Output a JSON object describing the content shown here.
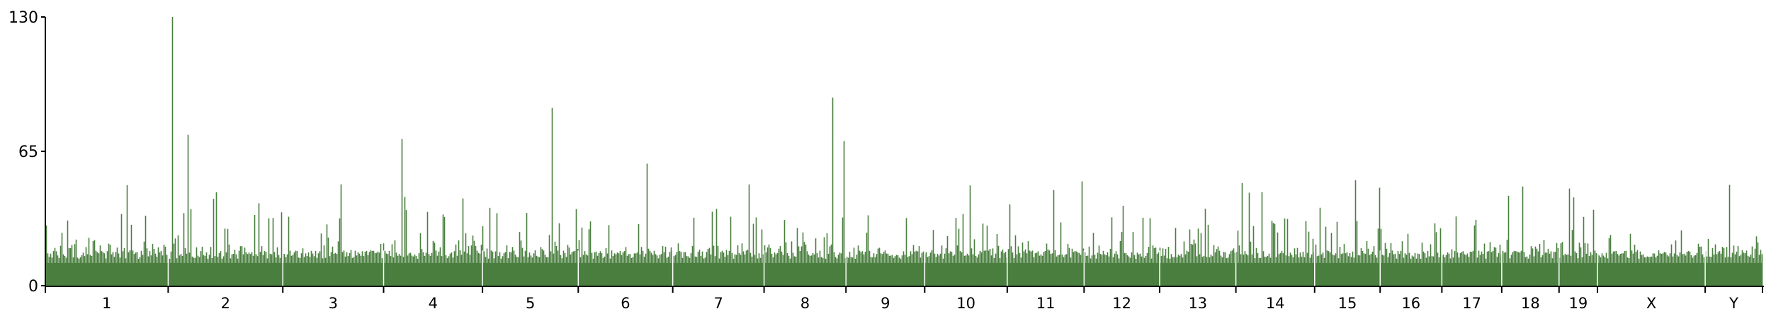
{
  "chart_data": {
    "type": "bar",
    "title": "",
    "xlabel": "",
    "ylabel": "",
    "ylim": [
      0,
      130
    ],
    "y_ticks": [
      0,
      65,
      130
    ],
    "y_tick_labels": [
      "0",
      "65",
      "130"
    ],
    "grid": false,
    "legend": "none",
    "bar_color": "#4a7f3f",
    "gap_color": "#ffffff",
    "axis_color": "#000000",
    "baseline_value": 15,
    "categories": [
      "1",
      "2",
      "3",
      "4",
      "5",
      "6",
      "7",
      "8",
      "9",
      "10",
      "11",
      "12",
      "13",
      "14",
      "15",
      "16",
      "17",
      "18",
      "19",
      "X",
      "Y"
    ],
    "chromosome_relative_lengths": [
      195,
      182,
      160,
      157,
      152,
      150,
      145,
      130,
      125,
      131,
      122,
      120,
      121,
      125,
      104,
      98,
      95,
      91,
      61,
      171,
      91
    ],
    "notable_peaks": [
      {
        "chromosome": "2",
        "position_fraction": 0.03,
        "value": 130
      },
      {
        "chromosome": "2",
        "position_fraction": 0.17,
        "value": 73
      },
      {
        "chromosome": "4",
        "position_fraction": 0.18,
        "value": 71
      },
      {
        "chromosome": "5",
        "position_fraction": 0.73,
        "value": 86
      },
      {
        "chromosome": "5",
        "position_fraction": 0.97,
        "value": 37
      },
      {
        "chromosome": "6",
        "position_fraction": 0.72,
        "value": 59
      },
      {
        "chromosome": "8",
        "position_fraction": 0.83,
        "value": 91
      },
      {
        "chromosome": "8",
        "position_fraction": 0.98,
        "value": 70
      },
      {
        "chromosome": "3",
        "position_fraction": 0.57,
        "value": 49
      },
      {
        "chromosome": "15",
        "position_fraction": 0.62,
        "value": 51
      },
      {
        "chromosome": "18",
        "position_fraction": 0.35,
        "value": 48
      },
      {
        "chromosome": "19",
        "position_fraction": 0.25,
        "value": 47
      }
    ]
  }
}
